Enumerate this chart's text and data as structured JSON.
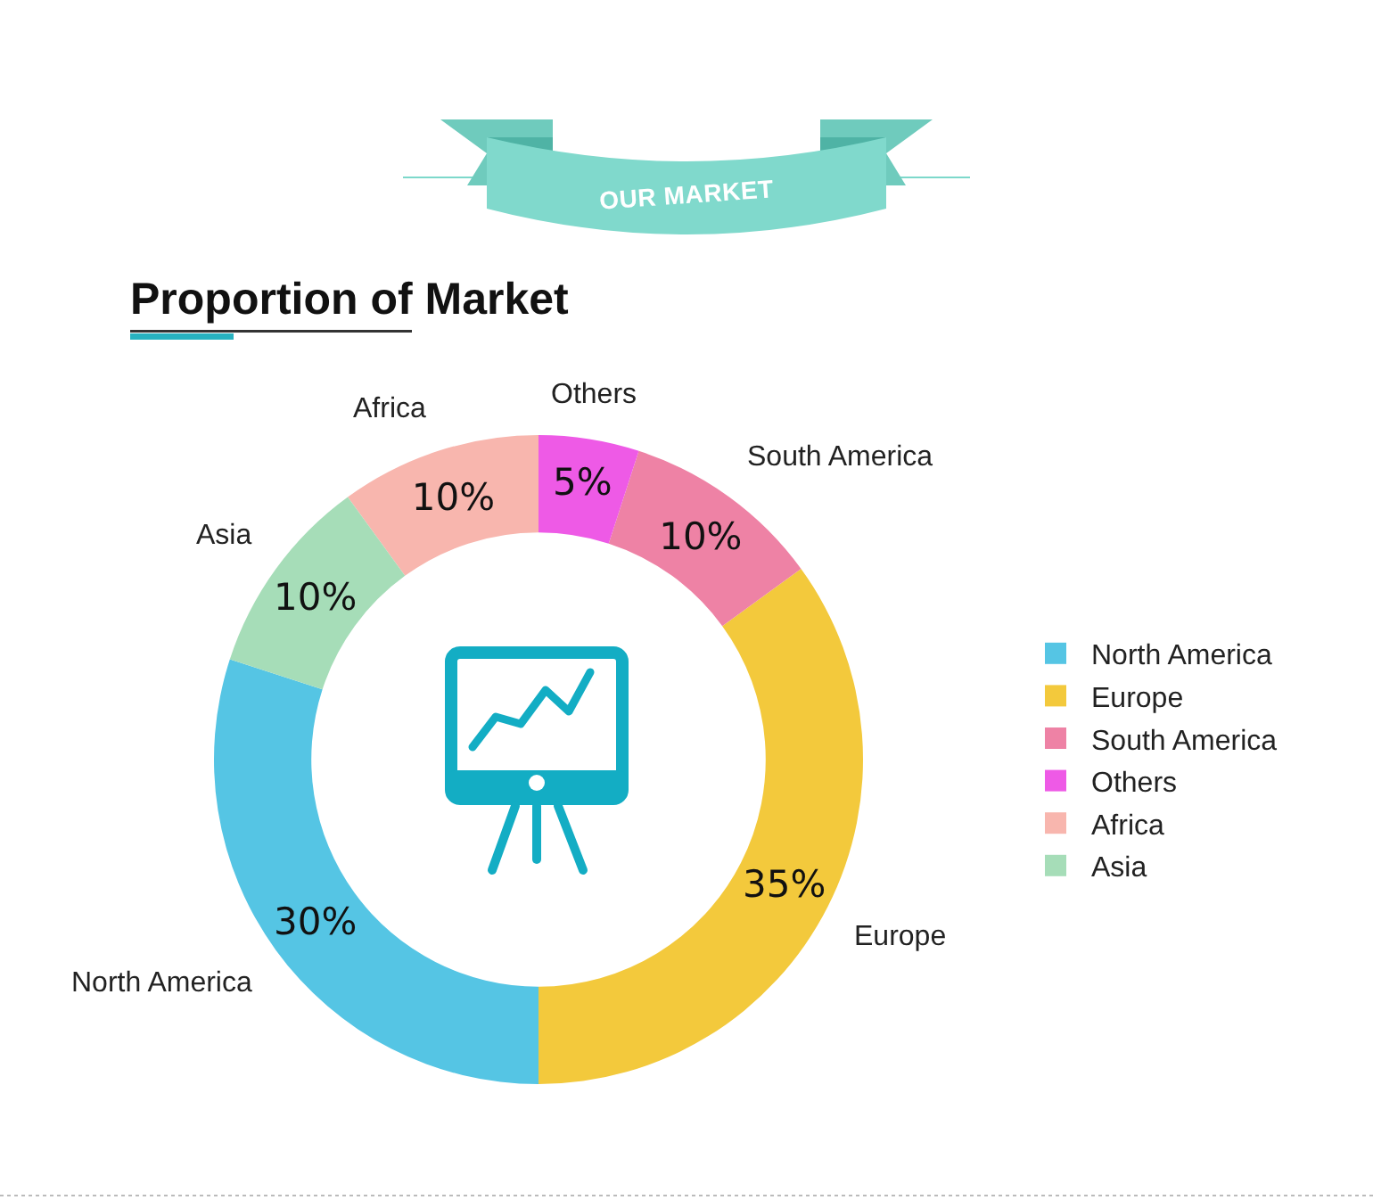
{
  "chart_data": {
    "type": "donut",
    "title": "OUR MARKET",
    "subtitle": "Proportion of Market",
    "categories": [
      "North America",
      "Europe",
      "South America",
      "Others",
      "Africa",
      "Asia"
    ],
    "values": [
      30,
      35,
      10,
      5,
      10,
      10
    ],
    "value_labels": [
      "30%",
      "35%",
      "10%",
      "5%",
      "10%",
      "10%"
    ],
    "colors": [
      "#55c5e4",
      "#f3c93c",
      "#ee82a5",
      "#ee5ae6",
      "#f8b6ae",
      "#a6ddb8"
    ],
    "legend": "right"
  }
}
